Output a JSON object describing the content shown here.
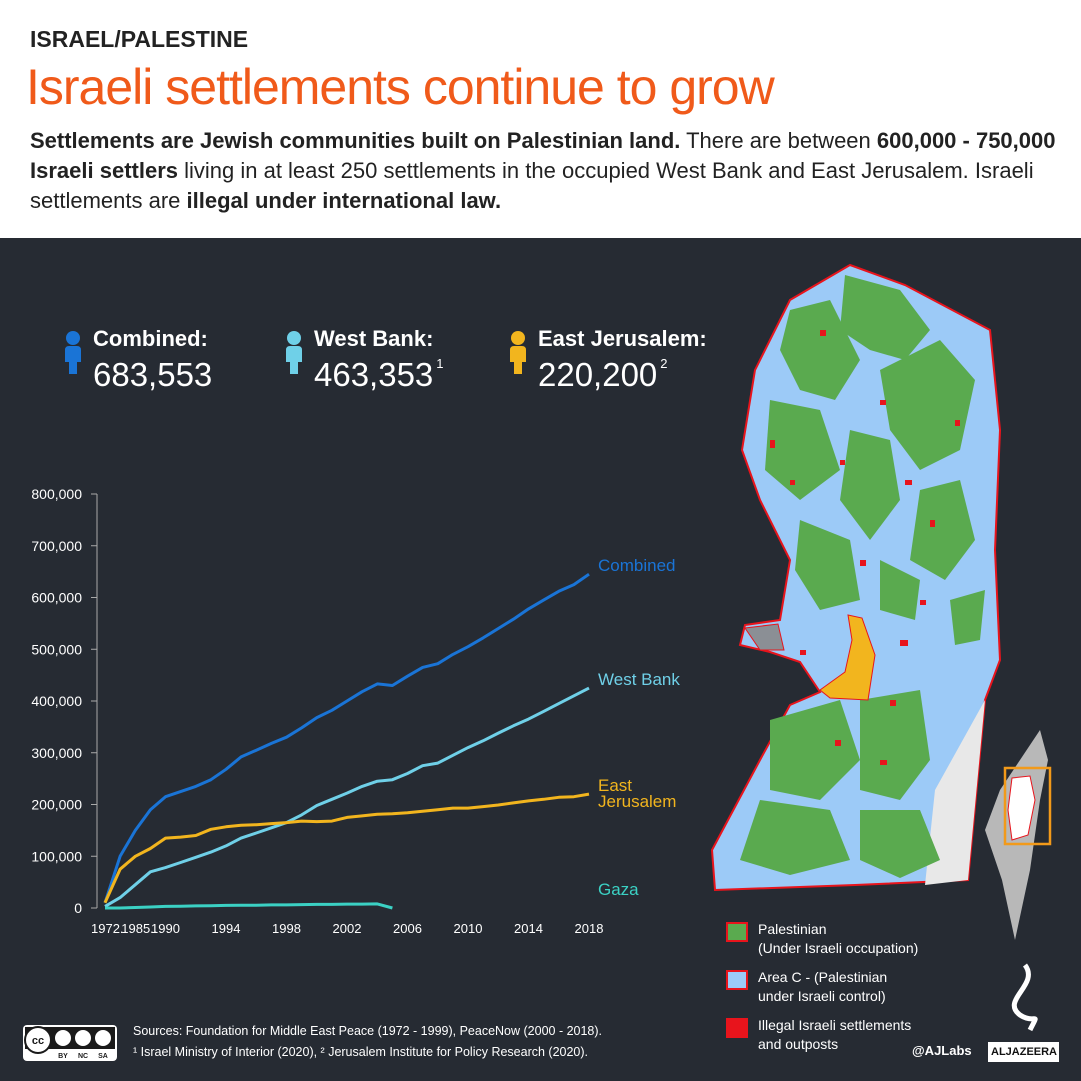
{
  "header": {
    "kicker": "ISRAEL/PALESTINE",
    "title": "Israeli settlements continue to grow",
    "intro": [
      {
        "text": "Settlements are Jewish communities built on Palestinian land.",
        "bold": true
      },
      {
        "text": " There are between ",
        "bold": false
      },
      {
        "text": "600,000 - 750,000 Israeli settlers",
        "bold": true
      },
      {
        "text": " living in at least 250 settlements in the occupied West Bank and East Jerusalem. Israeli settlements are ",
        "bold": false
      },
      {
        "text": "illegal under international law.",
        "bold": true
      }
    ]
  },
  "stats": [
    {
      "label": "Combined:",
      "value": "683,553",
      "color": "#1a74d6"
    },
    {
      "label": "West Bank:",
      "value": "463,353",
      "note": "1",
      "color": "#6fd0e8"
    },
    {
      "label": "East Jerusalem:",
      "value": "220,200",
      "note": "2",
      "color": "#f2b51e"
    }
  ],
  "chart_data": {
    "type": "line",
    "categories": [
      "1972..",
      null,
      "1985..",
      null,
      "1990",
      null,
      null,
      null,
      "1994",
      null,
      null,
      null,
      "1998",
      null,
      null,
      null,
      "2002",
      null,
      null,
      null,
      "2006",
      null,
      null,
      null,
      "2010",
      null,
      null,
      null,
      "2014",
      null,
      null,
      null,
      "2018"
    ],
    "ylim": [
      0,
      800000
    ],
    "yticks": [
      0,
      {
        "value": 100000,
        "label": "100,000"
      },
      {
        "value": 200000,
        "label": "200,000"
      },
      {
        "value": 300000,
        "label": "300,000"
      },
      {
        "value": 400000,
        "label": "400,000"
      },
      {
        "value": 500000,
        "label": "500,000"
      },
      {
        "value": 600000,
        "label": "600,000"
      },
      {
        "value": 700000,
        "label": "700,000"
      },
      {
        "value": 800000,
        "label": "800,000"
      }
    ],
    "grid": false,
    "series": [
      {
        "name": "Combined",
        "color": "#1a74d6",
        "values": [
          10000,
          100000,
          150000,
          190000,
          215000,
          225000,
          235000,
          248000,
          268000,
          292000,
          305000,
          318000,
          330000,
          348000,
          368000,
          382000,
          400000,
          418000,
          433000,
          430000,
          448000,
          465000,
          472000,
          490000,
          505000,
          522000,
          540000,
          558000,
          578000,
          595000,
          612000,
          625000,
          645000
        ]
      },
      {
        "name": "West Bank",
        "color": "#6fd0e8",
        "values": [
          3000,
          20000,
          45000,
          70000,
          78000,
          88000,
          98000,
          108000,
          120000,
          135000,
          145000,
          155000,
          165000,
          180000,
          198000,
          210000,
          222000,
          235000,
          245000,
          248000,
          260000,
          275000,
          280000,
          295000,
          310000,
          323000,
          338000,
          352000,
          365000,
          380000,
          395000,
          410000,
          425000
        ]
      },
      {
        "name": "East Jerusalem",
        "color": "#f2b51e",
        "values": [
          10000,
          75000,
          100000,
          115000,
          135000,
          137000,
          140000,
          152000,
          157000,
          160000,
          161000,
          163000,
          165000,
          168000,
          167000,
          168000,
          175000,
          178000,
          181000,
          182000,
          184000,
          187000,
          190000,
          193000,
          193000,
          196000,
          199000,
          203000,
          207000,
          210000,
          214000,
          215000,
          220000
        ]
      },
      {
        "name": "Gaza",
        "color": "#3bd1c4",
        "values": [
          0,
          0,
          1000,
          2000,
          3000,
          3500,
          4000,
          4500,
          5000,
          5500,
          5500,
          6000,
          6000,
          6500,
          7000,
          7000,
          7500,
          7500,
          8000,
          0,
          null,
          null,
          null,
          null,
          null,
          null,
          null,
          null,
          null,
          null,
          null,
          null,
          null
        ]
      }
    ]
  },
  "map_legend": [
    {
      "lines": [
        "Palestinian",
        "(Under Israeli occupation)"
      ],
      "color": "#5aaa4f"
    },
    {
      "lines": [
        "Area C - (Palestinian",
        "under Israeli control)"
      ],
      "color": "#9ccaf7"
    },
    {
      "lines": [
        "Illegal Israeli settlements",
        "and outposts"
      ],
      "color": "#e8141c"
    }
  ],
  "footer": {
    "license": [
      "BY",
      "NC",
      "SA"
    ],
    "sources": [
      "Sources: Foundation for Middle East Peace (1972 - 1999), PeaceNow (2000 - 2018).",
      "¹ Israel Ministry of Interior (2020), ² Jerusalem Institute for Policy Research (2020)."
    ],
    "handle": "@AJLabs",
    "brand": "ALJAZEERA"
  }
}
